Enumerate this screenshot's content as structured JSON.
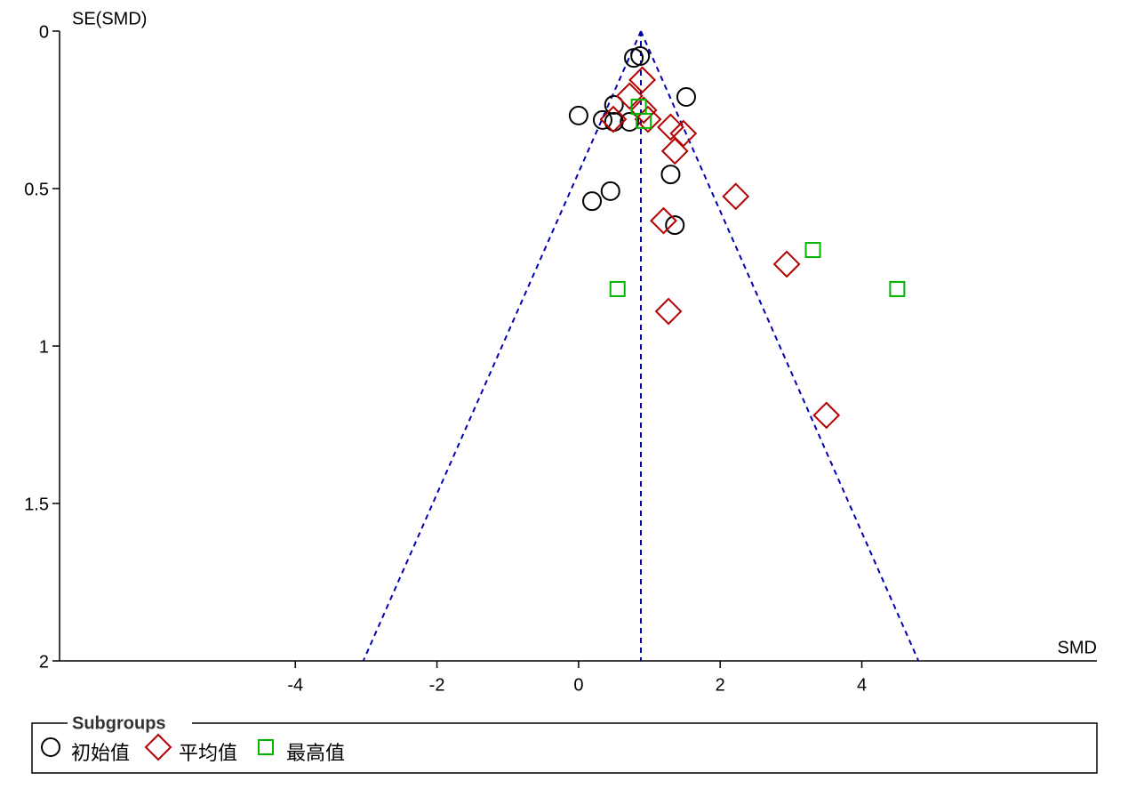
{
  "chart_data": {
    "type": "scatter",
    "y_label": "SE(SMD)",
    "x_label": "SMD",
    "xlim": [
      -7.33,
      7.32
    ],
    "ylim": [
      0,
      2
    ],
    "y_inverted": true,
    "xticks": [
      -4,
      -2,
      0,
      2,
      4
    ],
    "yticks": [
      0,
      0.5,
      1,
      1.5,
      2
    ],
    "summary_x": 0.88,
    "funnel_z": 1.96,
    "funnel_color": "#0000b0",
    "legend_title": "Subgroups",
    "series": [
      {
        "name": "初始值",
        "marker": "circle",
        "color": "#000000",
        "x": [
          0.87,
          0.78,
          1.52,
          0.5,
          0.0,
          0.34,
          0.5,
          0.72,
          1.3,
          0.45,
          0.19,
          1.36
        ],
        "values": [
          0.079,
          0.085,
          0.209,
          0.234,
          0.268,
          0.282,
          0.288,
          0.288,
          0.455,
          0.508,
          0.54,
          0.616
        ]
      },
      {
        "name": "平均值",
        "marker": "diamond",
        "color": "#b40000",
        "x": [
          0.9,
          0.72,
          0.92,
          0.49,
          0.98,
          1.3,
          1.48,
          1.36,
          2.22,
          1.2,
          2.94,
          1.27,
          3.5
        ],
        "values": [
          0.155,
          0.206,
          0.251,
          0.28,
          0.28,
          0.305,
          0.325,
          0.381,
          0.525,
          0.602,
          0.74,
          0.89,
          1.22
        ]
      },
      {
        "name": "最高值",
        "marker": "square",
        "color": "#00b400",
        "x": [
          0.85,
          0.92,
          3.31,
          0.55,
          4.5
        ],
        "values": [
          0.24,
          0.285,
          0.695,
          0.819,
          0.819
        ]
      }
    ]
  }
}
